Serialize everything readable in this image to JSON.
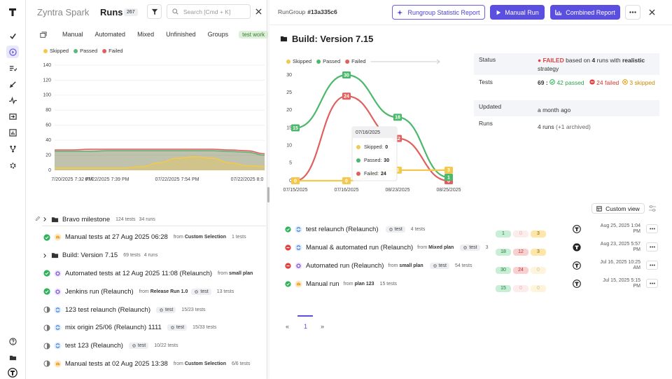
{
  "left": {
    "app_name": "Zyntra Spark",
    "title": "Runs",
    "count": 267,
    "search_placeholder": "Search [Cmd + K]",
    "tabs": [
      "Manual",
      "Automated",
      "Mixed",
      "Unfinished",
      "Groups",
      "test work"
    ],
    "chart": {
      "type": "area",
      "categories": [
        null,
        "7/20/2025 7:32 PM",
        null,
        "07/22/2025 7:39 PM",
        null,
        null,
        null,
        "07/22/2025 7:54 PM",
        null,
        null,
        null,
        "07/22/2025 8:0",
        null
      ],
      "series": [
        {
          "name": "Skipped",
          "color": "#f2c94c",
          "values": [
            3,
            3,
            3,
            3,
            3,
            5,
            10,
            16,
            18,
            16,
            10,
            6,
            5
          ]
        },
        {
          "name": "Passed",
          "color": "#5cb87a",
          "values": [
            25,
            25,
            25,
            26,
            26,
            26,
            26,
            26,
            26,
            26,
            25,
            24,
            20
          ]
        },
        {
          "name": "Failed",
          "color": "#e06060",
          "values": [
            27,
            27,
            28,
            28,
            28,
            28,
            28,
            28,
            28,
            28,
            27,
            26,
            22
          ]
        }
      ],
      "ylim": [
        0,
        140
      ],
      "yticks": [
        0,
        20,
        40,
        60,
        80,
        100,
        120,
        140
      ],
      "grid": true,
      "legend": "top-left"
    },
    "runs": [
      {
        "kind": "group",
        "name": "Bravo milestone",
        "tests": "124 tests",
        "runs": "34 runs"
      },
      {
        "kind": "run",
        "status": "passed",
        "type": "manual",
        "name": "Manual tests at 27 Aug 2025 06:28",
        "source": "Custom Selection",
        "tests": "1 tests"
      },
      {
        "kind": "group",
        "name": "Build: Version 7.15",
        "tests": "69 tests",
        "runs": "4 runs"
      },
      {
        "kind": "run",
        "status": "passed",
        "type": "auto",
        "name": "Automated tests at 12 Aug 2025 11:08 (Relaunch)",
        "source": "small plan"
      },
      {
        "kind": "run",
        "status": "passed",
        "type": "auto",
        "name": "Jenkins run (Relaunch)",
        "source": "Release Run 1.0",
        "tag": "test",
        "tests": "13 tests"
      },
      {
        "kind": "run",
        "status": "unfinished",
        "type": "mixed",
        "name": "123 test relaunch (Relaunch)",
        "tag": "test",
        "tests": "15/23 tests"
      },
      {
        "kind": "run",
        "status": "unfinished",
        "type": "mixed",
        "name": "mix origin 25/06 (Relaunch) 1111",
        "tag": "test",
        "tests": "15/33 tests"
      },
      {
        "kind": "run",
        "status": "unfinished",
        "type": "mixed",
        "name": "test 123  (Relaunch)",
        "tag": "test",
        "tests": "10/22 tests"
      },
      {
        "kind": "run",
        "status": "unfinished",
        "type": "manual",
        "name": "Manual tests at 02 Aug 2025 13:38",
        "source": "Custom Selection",
        "tests": "6/6 tests"
      }
    ]
  },
  "labels": {
    "from": "from"
  },
  "right": {
    "header": {
      "label": "RunGroup",
      "id": "#13a335c6",
      "buttons": [
        "Rungroup Statistic Report",
        "Manual Run",
        "Combined Report"
      ]
    },
    "title": "Build: Version 7.15",
    "chart": {
      "type": "line",
      "categories": [
        "07/15/2025",
        "07/16/2025",
        "08/23/2025",
        "08/25/2025"
      ],
      "series": [
        {
          "name": "Skipped",
          "color": "#f2c94c",
          "values": [
            0,
            0,
            3,
            3
          ]
        },
        {
          "name": "Passed",
          "color": "#4cb86c",
          "values": [
            15,
            30,
            18,
            1
          ]
        },
        {
          "name": "Failed",
          "color": "#e0605e",
          "values": [
            0,
            24,
            12,
            0
          ]
        }
      ],
      "ylim": [
        0,
        30
      ],
      "yticks": [
        0,
        5,
        10,
        15,
        20,
        25,
        30
      ],
      "grid": false,
      "legend": "top-left",
      "data_labels": true,
      "tooltip": {
        "title": "07/16/2025",
        "rows": [
          {
            "name": "Skipped:",
            "value": 0
          },
          {
            "name": "Passed:",
            "value": 30
          },
          {
            "name": "Failed:",
            "value": 24
          }
        ]
      }
    },
    "summary": {
      "status": {
        "label": "Status",
        "state": "FAILED",
        "text": "based on",
        "runs": "4",
        "text2": "runs with",
        "strategy": "realistic",
        "text3": "strategy"
      },
      "tests": {
        "label": "Tests",
        "total": 69,
        "sep": ":",
        "passed": "42 passed",
        "failed": "24 failed",
        "skipped": "3 skipped"
      },
      "updated": {
        "label": "Updated",
        "value": "a month ago"
      },
      "runs": {
        "label": "Runs",
        "value": "4 runs",
        "archived": "(+1 archived)"
      }
    },
    "custom_view": "Custom view",
    "runs": [
      {
        "status": "passed",
        "type": "mixed",
        "name": "test relaunch (Relaunch)",
        "tag": "test",
        "tests": "4 tests",
        "passed": 1,
        "failed": 0,
        "skipped": 3,
        "avatar_filled": false,
        "date": "Aug 25, 2025 1:04 PM"
      },
      {
        "status": "failed",
        "type": "mixed",
        "name": "Manual & automated run (Relaunch)",
        "source": "Mixed plan",
        "tag": "test",
        "tests": "3",
        "passed": 18,
        "failed": 12,
        "skipped": 3,
        "avatar_filled": true,
        "date": "Aug 23, 2025 5:57 PM"
      },
      {
        "status": "failed",
        "type": "auto",
        "name": "Automated run (Relaunch)",
        "source": "small plan",
        "tag": "test",
        "tests": "54 tests",
        "passed": 30,
        "failed": 24,
        "skipped": 0,
        "avatar_filled": false,
        "date": "Jul 16, 2025 10:25 AM"
      },
      {
        "status": "passed",
        "type": "manual",
        "name": "Manual run",
        "source": "plan 123",
        "tests": "15 tests",
        "passed": 15,
        "failed": 0,
        "skipped": 0,
        "avatar_filled": false,
        "date": "Jul 15, 2025 5:15 PM"
      }
    ],
    "pagination": {
      "prev": "«",
      "page": 1,
      "next": "»"
    }
  }
}
